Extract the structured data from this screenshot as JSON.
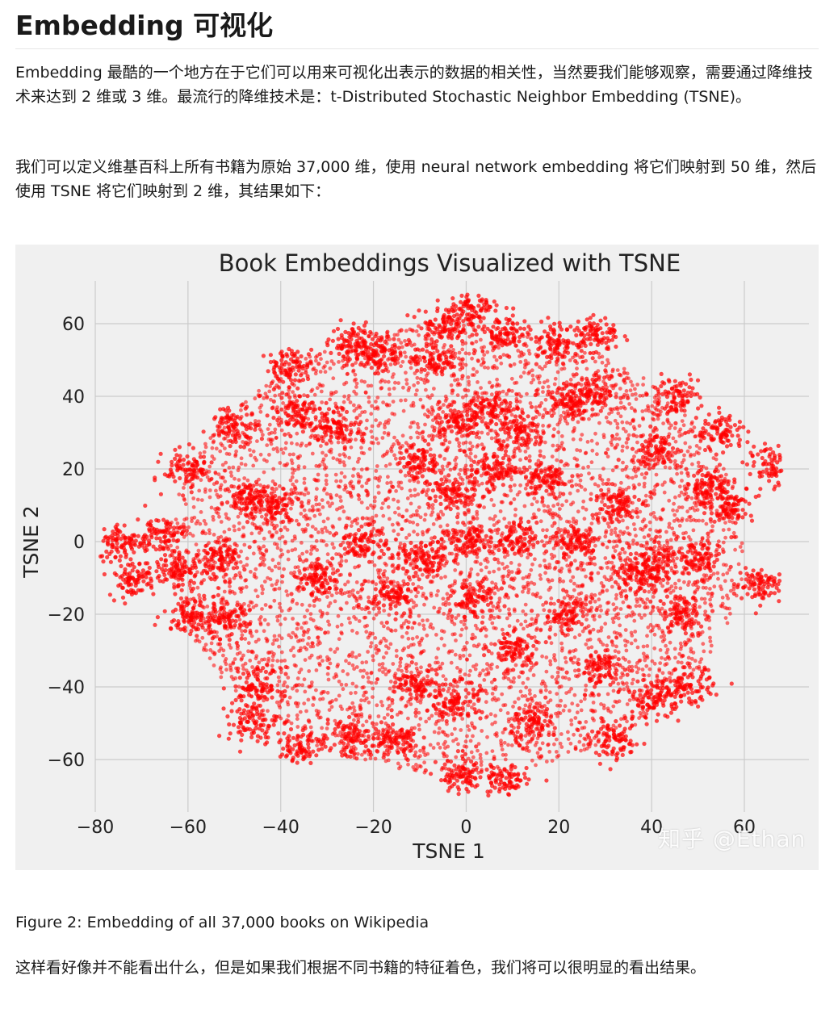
{
  "article": {
    "title": "Embedding 可视化",
    "paragraph_1": "Embedding 最酷的一个地方在于它们可以用来可视化出表示的数据的相关性，当然要我们能够观察，需要通过降维技术来达到 2 维或 3 维。最流行的降维技术是：t-Distributed Stochastic Neighbor Embedding (TSNE)。",
    "paragraph_2": "我们可以定义维基百科上所有书籍为原始 37,000 维，使用 neural network embedding 将它们映射到 50 维，然后使用 TSNE 将它们映射到 2 维，其结果如下：",
    "caption": "Figure 2: Embedding of all 37,000 books on Wikipedia",
    "paragraph_3": "这样看好像并不能看出什么，但是如果我们根据不同书籍的特征着色，我们将可以很明显的看出结果。",
    "watermark": "知乎 @Ethan"
  },
  "chart_data": {
    "type": "scatter",
    "title": "Book Embeddings Visualized with TSNE",
    "xlabel": "TSNE 1",
    "ylabel": "TSNE 2",
    "xlim": [
      -80,
      70
    ],
    "ylim": [
      -70,
      70
    ],
    "xticks": [
      -80,
      -60,
      -40,
      -20,
      0,
      20,
      40,
      60
    ],
    "yticks": [
      -60,
      -40,
      -20,
      0,
      20,
      40,
      60
    ],
    "xtick_labels": [
      "−80",
      "−60",
      "−40",
      "−20",
      "0",
      "20",
      "40",
      "60"
    ],
    "ytick_labels": [
      "−60",
      "−40",
      "−20",
      "0",
      "20",
      "40",
      "60"
    ],
    "grid": true,
    "point_color": "#ff0000",
    "background_color": "#f0f0f0",
    "point_count": 37000,
    "points": [
      [
        -2,
        33
      ],
      [
        5,
        36
      ],
      [
        12,
        30
      ],
      [
        17,
        17
      ],
      [
        19,
        55
      ],
      [
        28,
        41
      ],
      [
        8,
        57
      ],
      [
        -10,
        22
      ],
      [
        -16,
        -15
      ],
      [
        -3,
        13
      ],
      [
        2,
        -16
      ],
      [
        -50,
        32
      ],
      [
        -38,
        48
      ],
      [
        -28,
        32
      ],
      [
        -62,
        -8
      ],
      [
        -66,
        2
      ],
      [
        -53,
        -5
      ],
      [
        -52,
        -22
      ],
      [
        -41,
        10
      ],
      [
        -47,
        12
      ],
      [
        57,
        10
      ],
      [
        55,
        30
      ],
      [
        41,
        -43
      ],
      [
        48,
        -40
      ],
      [
        -1,
        -65
      ],
      [
        8,
        -66
      ],
      [
        -24,
        -54
      ],
      [
        -35,
        -56
      ],
      [
        32,
        -55
      ],
      [
        41,
        25
      ],
      [
        45,
        40
      ],
      [
        22,
        39
      ],
      [
        32,
        10
      ],
      [
        -10,
        -40
      ],
      [
        -2,
        -44
      ],
      [
        10,
        -30
      ],
      [
        22,
        -20
      ],
      [
        29,
        -35
      ],
      [
        46,
        -20
      ],
      [
        40,
        -5
      ],
      [
        -24,
        55
      ],
      [
        -19,
        52
      ],
      [
        -22,
        0
      ],
      [
        -32,
        -10
      ],
      [
        -9,
        -5
      ],
      [
        0,
        0
      ],
      [
        10,
        0
      ],
      [
        6,
        20
      ],
      [
        24,
        0
      ],
      [
        -74,
        0
      ],
      [
        -72,
        -10
      ],
      [
        -46,
        -50
      ],
      [
        66,
        21
      ],
      [
        63,
        -12
      ],
      [
        -37,
        35
      ],
      [
        -7,
        50
      ],
      [
        2,
        65
      ],
      [
        -5,
        60
      ],
      [
        28,
        57
      ],
      [
        37,
        -10
      ],
      [
        15,
        -50
      ],
      [
        -15,
        -55
      ],
      [
        -60,
        -20
      ],
      [
        -45,
        -40
      ],
      [
        50,
        -5
      ],
      [
        52,
        15
      ],
      [
        -60,
        20
      ]
    ]
  }
}
